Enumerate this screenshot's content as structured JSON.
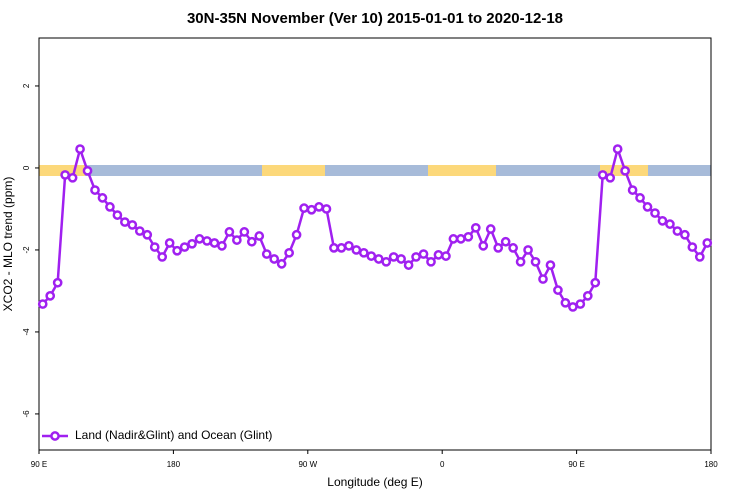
{
  "chart_data": {
    "type": "line",
    "title": "30N-35N November (Ver 10)   2015-01-01 to 2020-12-18",
    "x_label": "Longitude (deg E)",
    "y_label": "XCO2 - MLO trend (ppm)",
    "xlim": [
      90,
      540
    ],
    "ylim": [
      -6.88,
      3.17
    ],
    "xticks": [
      {
        "value": 90,
        "label": "90 E"
      },
      180,
      {
        "value": 270,
        "label": "90 W"
      },
      {
        "value": 360,
        "label": "0"
      },
      {
        "value": 450,
        "label": "90 E"
      },
      {
        "value": 540,
        "label": "180"
      }
    ],
    "yticks": [
      2,
      0,
      -2,
      -4,
      -6
    ],
    "legend": "bottom-left",
    "x": [
      92.5,
      97.5,
      102.5,
      107.5,
      112.5,
      117.5,
      122.5,
      127.5,
      132.5,
      137.5,
      142.5,
      147.5,
      152.5,
      157.5,
      162.5,
      167.5,
      172.5,
      177.5,
      182.5,
      187.5,
      192.5,
      197.5,
      202.5,
      207.5,
      212.5,
      217.5,
      222.5,
      227.5,
      232.5,
      237.5,
      242.5,
      247.5,
      252.5,
      257.5,
      262.5,
      267.5,
      272.5,
      277.5,
      282.5,
      287.5,
      292.5,
      297.5,
      302.5,
      307.5,
      312.5,
      317.5,
      322.5,
      327.5,
      332.5,
      337.5,
      342.5,
      347.5,
      352.5,
      357.5,
      362.5,
      367.5,
      372.5,
      377.5,
      382.5,
      387.5,
      392.5,
      397.5,
      402.5,
      407.5,
      412.5,
      417.5,
      422.5,
      427.5,
      432.5,
      437.5,
      442.5,
      447.5,
      452.5,
      457.5,
      462.5,
      467.5,
      472.5,
      477.5,
      482.5,
      487.5,
      492.5,
      497.5,
      502.5,
      507.5,
      512.5,
      517.5,
      522.5,
      527.5,
      532.5,
      537.5
    ],
    "series": [
      {
        "name": "Land (Nadir&Glint) and Ocean (Glint)",
        "color": "#a020f0",
        "values": [
          -3.32,
          -3.12,
          -2.8,
          -0.17,
          -0.24,
          0.46,
          -0.07,
          -0.54,
          -0.73,
          -0.95,
          -1.15,
          -1.32,
          -1.39,
          -1.54,
          -1.63,
          -1.93,
          -2.17,
          -1.83,
          -2.02,
          -1.93,
          -1.85,
          -1.73,
          -1.78,
          -1.83,
          -1.9,
          -1.56,
          -1.76,
          -1.56,
          -1.8,
          -1.66,
          -2.1,
          -2.22,
          -2.34,
          -2.07,
          -1.63,
          -0.98,
          -1.02,
          -0.95,
          -1.0,
          -1.95,
          -1.95,
          -1.9,
          -2.0,
          -2.07,
          -2.15,
          -2.22,
          -2.29,
          -2.17,
          -2.22,
          -2.37,
          -2.17,
          -2.1,
          -2.29,
          -2.12,
          -2.15,
          -1.73,
          -1.73,
          -1.68,
          -1.46,
          -1.9,
          -1.49,
          -1.95,
          -1.8,
          -1.95,
          -2.29,
          -2.0,
          -2.29,
          -2.71,
          -2.37,
          -2.98,
          -3.29,
          -3.39,
          -3.32,
          -3.12,
          -2.8,
          -0.17,
          -0.24,
          0.46,
          -0.07,
          -0.54,
          -0.73,
          -0.95,
          -1.1,
          -1.29,
          -1.37,
          -1.54,
          -1.63,
          -1.93,
          -2.17,
          -1.83
        ]
      }
    ]
  }
}
